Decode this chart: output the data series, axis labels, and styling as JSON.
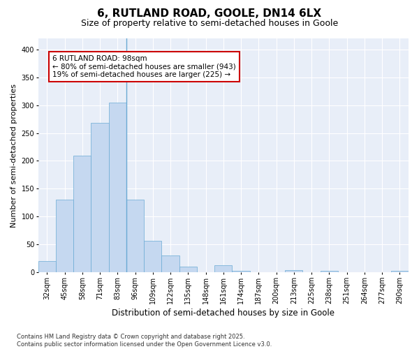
{
  "title": "6, RUTLAND ROAD, GOOLE, DN14 6LX",
  "subtitle": "Size of property relative to semi-detached houses in Goole",
  "xlabel": "Distribution of semi-detached houses by size in Goole",
  "ylabel": "Number of semi-detached properties",
  "categories": [
    "32sqm",
    "45sqm",
    "58sqm",
    "71sqm",
    "83sqm",
    "96sqm",
    "109sqm",
    "122sqm",
    "135sqm",
    "148sqm",
    "161sqm",
    "174sqm",
    "187sqm",
    "200sqm",
    "213sqm",
    "225sqm",
    "238sqm",
    "251sqm",
    "264sqm",
    "277sqm",
    "290sqm"
  ],
  "values": [
    20,
    130,
    210,
    268,
    305,
    130,
    57,
    30,
    10,
    0,
    12,
    3,
    0,
    0,
    4,
    0,
    2,
    0,
    0,
    0,
    2
  ],
  "bar_color": "#c5d8f0",
  "bar_edge_color": "#6aaad4",
  "vline_color": "#6aaad4",
  "vline_index": 5,
  "annotation_title": "6 RUTLAND ROAD: 98sqm",
  "annotation_line1": "← 80% of semi-detached houses are smaller (943)",
  "annotation_line2": "19% of semi-detached houses are larger (225) →",
  "annotation_box_facecolor": "#ffffff",
  "annotation_box_edgecolor": "#cc0000",
  "footer_line1": "Contains HM Land Registry data © Crown copyright and database right 2025.",
  "footer_line2": "Contains public sector information licensed under the Open Government Licence v3.0.",
  "ylim": [
    0,
    420
  ],
  "yticks": [
    0,
    50,
    100,
    150,
    200,
    250,
    300,
    350,
    400
  ],
  "fig_facecolor": "#ffffff",
  "plot_facecolor": "#e8eef8",
  "grid_color": "#ffffff",
  "title_fontsize": 11,
  "subtitle_fontsize": 9,
  "xlabel_fontsize": 8.5,
  "ylabel_fontsize": 8,
  "tick_fontsize": 7,
  "annotation_fontsize": 7.5,
  "footer_fontsize": 6
}
